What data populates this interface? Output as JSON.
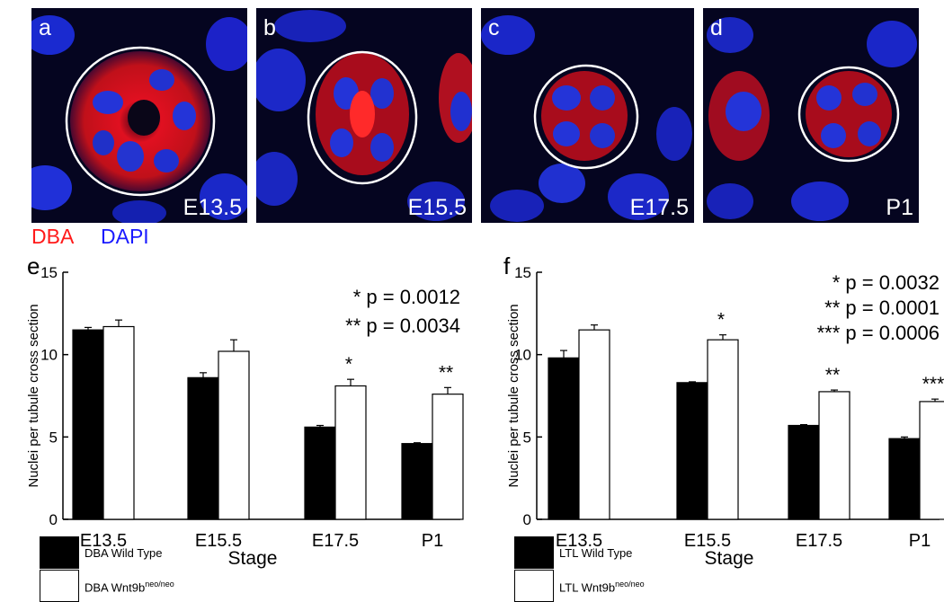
{
  "panels": [
    {
      "label": "a",
      "stage": "E13.5"
    },
    {
      "label": "b",
      "stage": "E15.5"
    },
    {
      "label": "c",
      "stage": "E17.5"
    },
    {
      "label": "d",
      "stage": "P1"
    }
  ],
  "stain_labels": {
    "dba": "DBA",
    "dapi": "DAPI"
  },
  "colors": {
    "dba": "#ff1a1a",
    "dapi": "#1a1aff",
    "wild_type_bar": "#000000",
    "mutant_bar": "#ffffff"
  },
  "chart_data": [
    {
      "type": "bar",
      "panel_label": "e",
      "categories": [
        "E13.5",
        "E15.5",
        "E17.5",
        "P1"
      ],
      "series": [
        {
          "name": "DBA Wild Type",
          "values": [
            11.5,
            8.6,
            5.6,
            4.6
          ],
          "errors": [
            0.15,
            0.3,
            0.1,
            0.05
          ]
        },
        {
          "name": "DBA Wnt9b",
          "name_sup": "neo/neo",
          "values": [
            11.7,
            10.2,
            8.1,
            7.6
          ],
          "errors": [
            0.4,
            0.7,
            0.4,
            0.4
          ]
        }
      ],
      "significance": [
        "",
        "",
        "*",
        "**"
      ],
      "annotations": [
        "* p = 0.0012",
        "** p = 0.0034"
      ],
      "xlabel": "Stage",
      "ylabel": "Nuclei per tubule cross section",
      "ylim": [
        0,
        15
      ],
      "yticks": [
        0,
        5,
        10,
        15
      ]
    },
    {
      "type": "bar",
      "panel_label": "f",
      "categories": [
        "E13.5",
        "E15.5",
        "E17.5",
        "P1"
      ],
      "series": [
        {
          "name": "LTL Wild Type",
          "values": [
            9.8,
            8.3,
            5.7,
            4.9
          ],
          "errors": [
            0.45,
            0.05,
            0.05,
            0.1
          ]
        },
        {
          "name": "LTL Wnt9b",
          "name_sup": "neo/neo",
          "values": [
            11.5,
            10.9,
            7.75,
            7.15
          ],
          "errors": [
            0.3,
            0.3,
            0.1,
            0.15
          ]
        }
      ],
      "significance": [
        "",
        "*",
        "**",
        "***"
      ],
      "annotations": [
        "* p = 0.0032",
        "** p = 0.0001",
        "*** p = 0.0006"
      ],
      "xlabel": "Stage",
      "ylabel": "Nuclei per tubule cross section",
      "ylim": [
        0,
        15
      ],
      "yticks": [
        0,
        5,
        10,
        15
      ]
    }
  ]
}
